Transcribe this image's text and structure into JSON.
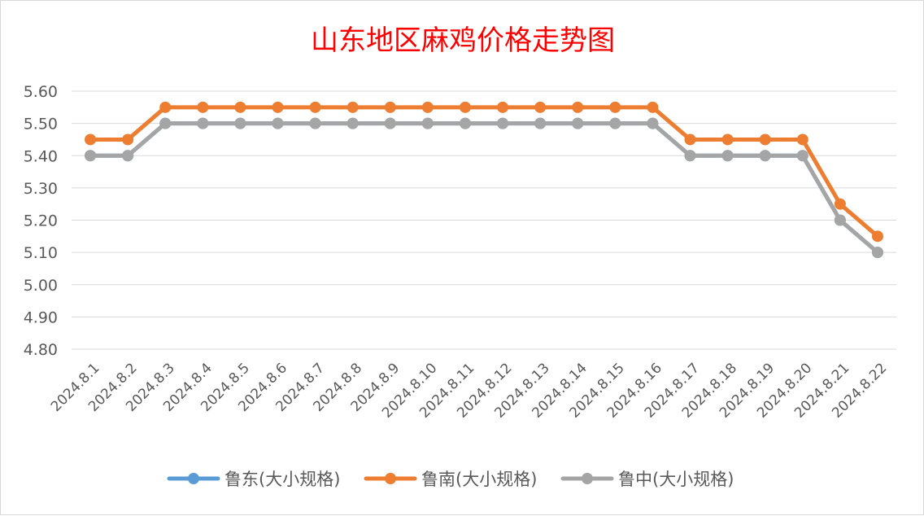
{
  "chart_data": {
    "type": "line",
    "title": "山东地区麻鸡价格走势图",
    "xlabel": "",
    "ylabel": "",
    "categories": [
      "2024.8.1",
      "2024.8.2",
      "2024.8.3",
      "2024.8.4",
      "2024.8.5",
      "2024.8.6",
      "2024.8.7",
      "2024.8.8",
      "2024.8.9",
      "2024.8.10",
      "2024.8.11",
      "2024.8.12",
      "2024.8.13",
      "2024.8.14",
      "2024.8.15",
      "2024.8.16",
      "2024.8.17",
      "2024.8.18",
      "2024.8.19",
      "2024.8.20",
      "2024.8.21",
      "2024.8.22"
    ],
    "ylim": [
      4.8,
      5.6
    ],
    "yticks": [
      "4.80",
      "4.90",
      "5.00",
      "5.10",
      "5.20",
      "5.30",
      "5.40",
      "5.50",
      "5.60"
    ],
    "grid": true,
    "legend_position": "bottom",
    "series": [
      {
        "name": "鲁东(大小规格)",
        "color": "#5b9bd5",
        "values": [
          5.4,
          5.4,
          5.5,
          5.5,
          5.5,
          5.5,
          5.5,
          5.5,
          5.5,
          5.5,
          5.5,
          5.5,
          5.5,
          5.5,
          5.5,
          5.5,
          5.4,
          5.4,
          5.4,
          5.4,
          5.2,
          5.1
        ]
      },
      {
        "name": "鲁南(大小规格)",
        "color": "#ed7d31",
        "values": [
          5.45,
          5.45,
          5.55,
          5.55,
          5.55,
          5.55,
          5.55,
          5.55,
          5.55,
          5.55,
          5.55,
          5.55,
          5.55,
          5.55,
          5.55,
          5.55,
          5.45,
          5.45,
          5.45,
          5.45,
          5.25,
          5.15
        ]
      },
      {
        "name": "鲁中(大小规格)",
        "color": "#a5a5a5",
        "values": [
          5.4,
          5.4,
          5.5,
          5.5,
          5.5,
          5.5,
          5.5,
          5.5,
          5.5,
          5.5,
          5.5,
          5.5,
          5.5,
          5.5,
          5.5,
          5.5,
          5.4,
          5.4,
          5.4,
          5.4,
          5.2,
          5.1
        ]
      }
    ]
  }
}
